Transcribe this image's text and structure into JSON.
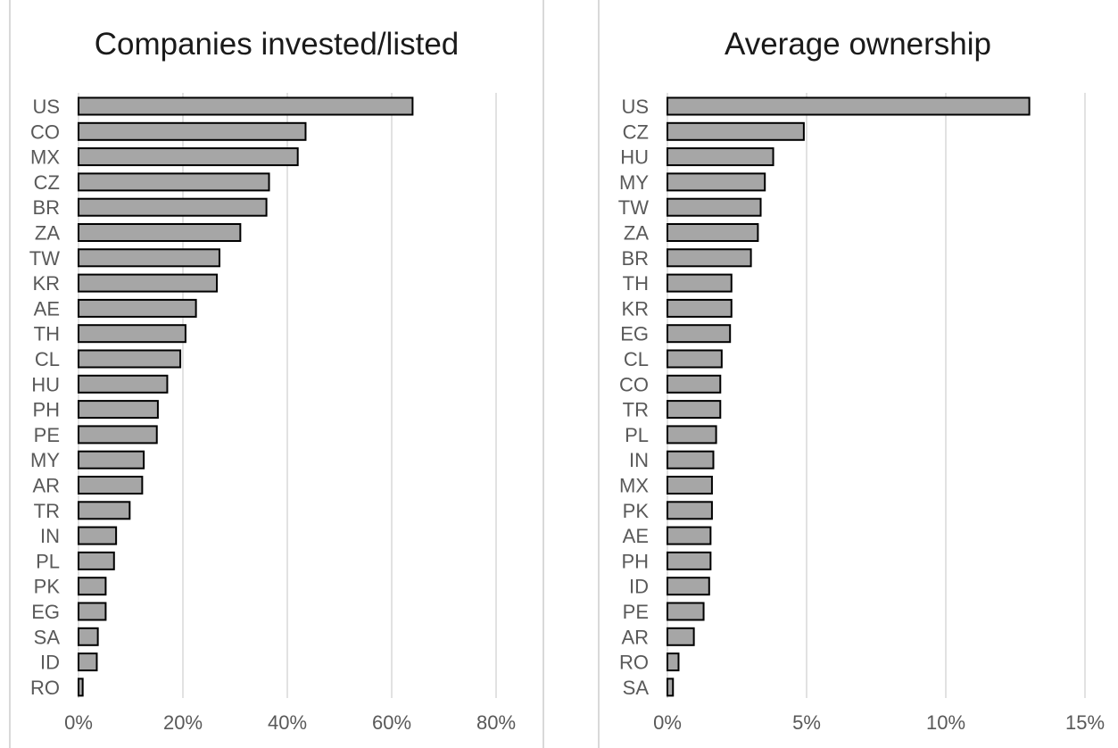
{
  "chart_data": [
    {
      "type": "bar",
      "orientation": "horizontal",
      "title": "Companies invested/listed",
      "xlabel": "",
      "ylabel": "",
      "xlim": [
        0,
        80
      ],
      "x_ticks": [
        0,
        20,
        40,
        60,
        80
      ],
      "x_tick_labels": [
        "0%",
        "20%",
        "40%",
        "60%",
        "80%"
      ],
      "grid": "vertical",
      "bar_color": "#a6a6a6",
      "categories": [
        "US",
        "CO",
        "MX",
        "CZ",
        "BR",
        "ZA",
        "TW",
        "KR",
        "AE",
        "TH",
        "CL",
        "HU",
        "PH",
        "PE",
        "MY",
        "AR",
        "TR",
        "IN",
        "PL",
        "PK",
        "EG",
        "SA",
        "ID",
        "RO"
      ],
      "values": [
        64,
        43.5,
        42,
        36.5,
        36,
        31,
        27,
        26.5,
        22.5,
        20.5,
        19.5,
        17,
        15.2,
        15,
        12.5,
        12.2,
        9.8,
        7.2,
        6.8,
        5.2,
        5.2,
        3.7,
        3.5,
        0.8
      ]
    },
    {
      "type": "bar",
      "orientation": "horizontal",
      "title": "Average ownership",
      "xlabel": "",
      "ylabel": "",
      "xlim": [
        0,
        15
      ],
      "x_ticks": [
        0,
        5,
        10,
        15
      ],
      "x_tick_labels": [
        "0%",
        "5%",
        "10%",
        "15%"
      ],
      "grid": "vertical",
      "bar_color": "#a6a6a6",
      "categories": [
        "US",
        "CZ",
        "HU",
        "MY",
        "TW",
        "ZA",
        "BR",
        "TH",
        "KR",
        "EG",
        "CL",
        "CO",
        "TR",
        "PL",
        "IN",
        "MX",
        "PK",
        "AE",
        "PH",
        "ID",
        "PE",
        "AR",
        "RO",
        "SA"
      ],
      "values": [
        13,
        4.9,
        3.8,
        3.5,
        3.35,
        3.25,
        3.0,
        2.3,
        2.3,
        2.25,
        1.95,
        1.9,
        1.9,
        1.75,
        1.65,
        1.6,
        1.6,
        1.55,
        1.55,
        1.5,
        1.3,
        0.95,
        0.4,
        0.2
      ]
    }
  ]
}
